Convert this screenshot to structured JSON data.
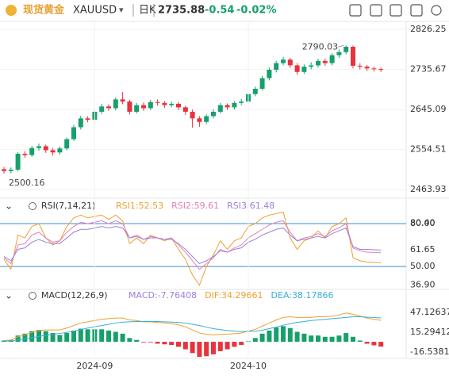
{
  "header": {
    "name": "现货黄金",
    "symbol": "XAUUSD",
    "period": "日K",
    "price": "2735.88",
    "change": "-0.54",
    "change_pct": "-0.02%"
  },
  "chart_data": [
    {
      "type": "candlestick",
      "up_color": "#17a06b",
      "down_color": "#e8323c",
      "ylim": [
        2448,
        2839
      ],
      "yticks": [
        2826.25,
        2735.67,
        2645.09,
        2554.51,
        2463.93
      ],
      "grid": true,
      "open": [
        2510,
        2506,
        2509,
        2545,
        2542,
        2558,
        2562,
        2553,
        2548,
        2557,
        2578,
        2605,
        2625,
        2622,
        2640,
        2652,
        2648,
        2668,
        2663,
        2640,
        2655,
        2648,
        2662,
        2660,
        2655,
        2658,
        2650,
        2640,
        2625,
        2617,
        2630,
        2640,
        2655,
        2650,
        2660,
        2663,
        2680,
        2692,
        2716,
        2735,
        2750,
        2758,
        2745,
        2730,
        2742,
        2745,
        2755,
        2750,
        2768,
        2775,
        2787,
        2744,
        2742,
        2738,
        2736.42
      ],
      "high": [
        2515,
        2514,
        2549,
        2551,
        2563,
        2568,
        2566,
        2558,
        2562,
        2582,
        2610,
        2631,
        2630,
        2646,
        2658,
        2657,
        2673,
        2685,
        2667,
        2660,
        2661,
        2667,
        2668,
        2664,
        2663,
        2662,
        2654,
        2645,
        2630,
        2634,
        2645,
        2660,
        2659,
        2664,
        2669,
        2685,
        2697,
        2721,
        2740,
        2755,
        2764,
        2762,
        2750,
        2747,
        2752,
        2760,
        2760,
        2772,
        2781,
        2790.03,
        2790,
        2750,
        2746,
        2742,
        2740
      ],
      "low": [
        2500.16,
        2501,
        2505,
        2536,
        2538,
        2552,
        2547,
        2541,
        2543,
        2553,
        2574,
        2600,
        2616,
        2618,
        2635,
        2642,
        2643,
        2657,
        2634,
        2636,
        2642,
        2644,
        2654,
        2649,
        2650,
        2644,
        2633,
        2604,
        2606,
        2612,
        2625,
        2636,
        2644,
        2645,
        2655,
        2658,
        2675,
        2688,
        2711,
        2729,
        2745,
        2739,
        2724,
        2726,
        2736,
        2740,
        2744,
        2745,
        2762,
        2770,
        2738,
        2736,
        2732,
        2731,
        2730
      ],
      "close": [
        2506,
        2509,
        2545,
        2542,
        2558,
        2562,
        2553,
        2548,
        2557,
        2578,
        2605,
        2625,
        2622,
        2640,
        2652,
        2648,
        2668,
        2663,
        2640,
        2655,
        2648,
        2662,
        2660,
        2655,
        2658,
        2650,
        2640,
        2625,
        2617,
        2630,
        2640,
        2655,
        2650,
        2660,
        2663,
        2680,
        2692,
        2716,
        2735,
        2750,
        2758,
        2745,
        2730,
        2742,
        2745,
        2755,
        2750,
        2768,
        2775,
        2787,
        2744,
        2742,
        2738,
        2736.42,
        2735.88
      ]
    },
    {
      "type": "line",
      "title": "RSI(7,14,21)",
      "ylim": [
        35.6,
        87.8
      ],
      "yticks": [
        {
          "value": 80.4,
          "label": "80.40"
        },
        {
          "value": 80,
          "label": "80.00"
        },
        61.65,
        {
          "value": 50,
          "label": "50.00"
        },
        {
          "value": 36.9,
          "label": "36.90"
        }
      ],
      "hlines": [
        80,
        50
      ],
      "hline_color": "#3a8fd8",
      "series": [
        {
          "name": "RSI1:52.53",
          "color": "#f0a030",
          "values": [
            55,
            48,
            72,
            70,
            78,
            80,
            70,
            65,
            68,
            78,
            84,
            86,
            84,
            85,
            86,
            83,
            86,
            82,
            66,
            70,
            66,
            72,
            70,
            68,
            70,
            62,
            55,
            44,
            36.9,
            50,
            58,
            68,
            62,
            68,
            70,
            78,
            80,
            84,
            86,
            87,
            88,
            70,
            62,
            68,
            70,
            75,
            70,
            78,
            80,
            84,
            56,
            54,
            53,
            52.8,
            52.53
          ]
        },
        {
          "name": "RSI2:59.61",
          "color": "#e67fb4",
          "values": [
            56,
            52,
            65,
            66,
            72,
            74,
            70,
            67,
            68,
            74,
            78,
            81,
            80,
            81,
            82,
            80,
            82,
            80,
            70,
            72,
            69,
            71,
            70,
            69,
            70,
            65,
            60,
            54,
            48,
            52,
            56,
            62,
            60,
            63,
            65,
            70,
            73,
            76,
            79,
            81,
            82,
            74,
            68,
            70,
            71,
            73,
            71,
            75,
            77,
            80,
            63,
            61,
            60,
            59.8,
            59.61
          ]
        },
        {
          "name": "RSI3:61.48",
          "color": "#9a7fe0",
          "values": [
            57,
            54,
            62,
            63,
            67,
            69,
            67,
            66,
            66,
            70,
            74,
            76,
            76,
            77,
            78,
            77,
            78,
            77,
            70,
            71,
            69,
            70,
            70,
            69,
            69,
            66,
            62,
            57,
            52,
            54,
            57,
            61,
            60,
            62,
            63,
            67,
            69,
            72,
            74,
            76,
            77,
            72,
            68,
            69,
            70,
            71,
            70,
            73,
            75,
            77,
            64,
            62,
            62,
            61.7,
            61.48
          ]
        }
      ]
    },
    {
      "type": "combo",
      "title": "MACD(12,26,9)",
      "ylim": [
        -24,
        61
      ],
      "yticks": [
        47.12637,
        15.29412,
        -16.53812
      ],
      "xticks": [
        {
          "value": 13,
          "label": "2024-09"
        },
        {
          "value": 35,
          "label": "2024-10"
        }
      ],
      "bars": {
        "name": "MACD:-7.76408",
        "up_color": "#17a06b",
        "down_color": "#e8323c",
        "values": [
          2,
          3,
          10,
          13,
          17,
          19,
          17,
          14,
          11,
          14,
          18,
          21,
          20,
          20,
          20,
          18,
          16,
          13,
          6,
          3,
          -1,
          -1,
          -3,
          -4,
          -5,
          -8,
          -12,
          -18,
          -24,
          -23,
          -20,
          -15,
          -12,
          -8,
          -5,
          1,
          6,
          13,
          18,
          23,
          25,
          22,
          16,
          13,
          10,
          10,
          8,
          8,
          10,
          14,
          8,
          2,
          -3,
          -5.6,
          -7.76408
        ]
      },
      "series": [
        {
          "name": "DIF:34.29661",
          "color": "#f0a030",
          "values": [
            2,
            3,
            8,
            11,
            15,
            18,
            19,
            19,
            19,
            22,
            26,
            30,
            32,
            34,
            36,
            37,
            38,
            38,
            35,
            34,
            32,
            32,
            31,
            30,
            29,
            27,
            24,
            19,
            14,
            12,
            11,
            12,
            12,
            13,
            14,
            17,
            20,
            25,
            30,
            35,
            39,
            40,
            39,
            39,
            39,
            40,
            40,
            41,
            43,
            46,
            44,
            41,
            38,
            36,
            34.29661
          ]
        },
        {
          "name": "DEA:38.17866",
          "color": "#3aaed6",
          "values": [
            1,
            1.5,
            3,
            4.5,
            6.5,
            8.5,
            10.5,
            12,
            13.5,
            15,
            17,
            19.5,
            22,
            24,
            26,
            28,
            30,
            31.5,
            32,
            32.5,
            32.5,
            32.5,
            32.5,
            32,
            31.5,
            31,
            30,
            28,
            26,
            23.5,
            21,
            19.5,
            18,
            17,
            16.5,
            16.5,
            17,
            18.5,
            21,
            23.5,
            26.5,
            29,
            31,
            32.5,
            34,
            35,
            36,
            37,
            38,
            39,
            40,
            40,
            39.5,
            38.8,
            38.17866
          ]
        }
      ]
    }
  ]
}
